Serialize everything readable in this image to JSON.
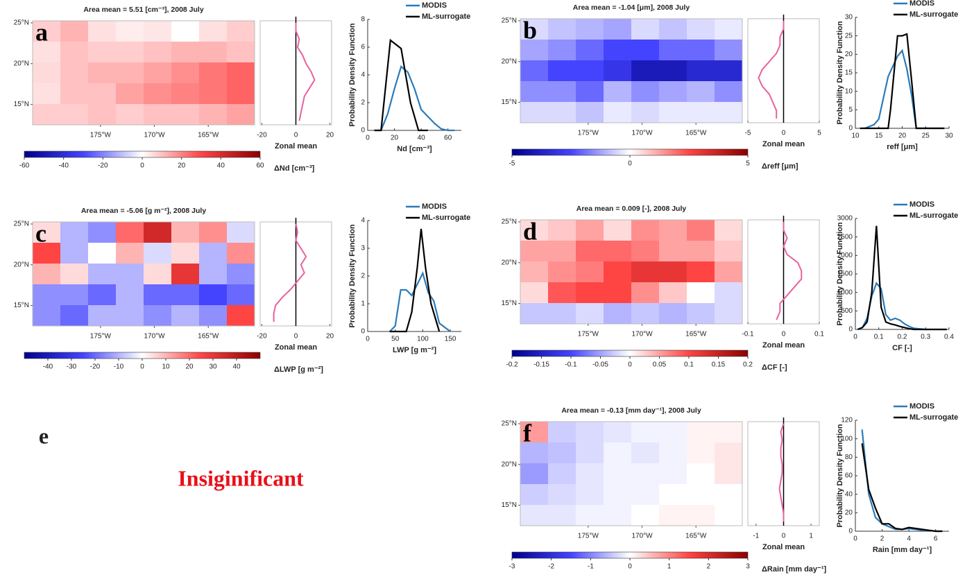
{
  "chart_data": [
    {
      "type": "heatmap",
      "label": "a",
      "title": "Area mean = 5.51  [cm⁻³], 2008 July",
      "xlim": [
        -181.3,
        -160.7
      ],
      "xticks": [
        {
          "value": -175,
          "label": "175°W"
        },
        {
          "value": -170,
          "label": "170°W"
        },
        {
          "value": -165,
          "label": "165°W"
        }
      ],
      "ylim": [
        12.5,
        25.25
      ],
      "yticks": [
        {
          "value": 15,
          "label": "15°N"
        },
        {
          "value": 20,
          "label": "20°N"
        },
        {
          "value": 25,
          "label": "25°N"
        }
      ],
      "field": [
        [
          8,
          12,
          5,
          3,
          4,
          0,
          5,
          8
        ],
        [
          5,
          10,
          8,
          8,
          10,
          12,
          12,
          10
        ],
        [
          6,
          10,
          12,
          12,
          15,
          18,
          22,
          25
        ],
        [
          5,
          10,
          10,
          15,
          18,
          20,
          22,
          25
        ],
        [
          8,
          8,
          10,
          8,
          10,
          10,
          12,
          15
        ]
      ],
      "clim": [
        -60,
        60
      ],
      "cticks": [
        -60,
        -40,
        -20,
        0,
        20,
        40,
        60
      ],
      "colorbar_label": "ΔNd [cm⁻³]",
      "zonal": {
        "type": "line",
        "xlim": [
          -21,
          21
        ],
        "xticks": [
          -20,
          0,
          20
        ],
        "xlabel": "Zonal mean",
        "color": "#e8609f",
        "y": [
          13,
          14,
          15,
          16,
          17,
          18,
          19,
          20,
          21,
          22,
          23,
          24,
          25
        ],
        "values": [
          2,
          3,
          4,
          5,
          8,
          11,
          9,
          6,
          4,
          1,
          2,
          0,
          0
        ]
      },
      "pdf": {
        "type": "line",
        "xlim": [
          0,
          70
        ],
        "xticks": [
          0,
          20,
          40,
          60
        ],
        "ylim": [
          0,
          8
        ],
        "yticks": [
          0,
          2,
          4,
          6,
          8
        ],
        "xlabel": "Nd [cm⁻³]",
        "ylabel": "Probability Density Function",
        "series": [
          {
            "name": "MODIS",
            "color": "#2a7ab9",
            "x": [
              5,
              10,
              15,
              20,
              25,
              30,
              35,
              40,
              45,
              50,
              55,
              60,
              65
            ],
            "values": [
              0,
              0,
              1.2,
              3,
              4.6,
              4.2,
              3,
              1.5,
              1,
              0.5,
              0.1,
              0,
              0
            ]
          },
          {
            "name": "ML-surrogate",
            "color": "#000000",
            "x": [
              5,
              10,
              17,
              25,
              32,
              38,
              45
            ],
            "values": [
              0,
              0,
              6.5,
              5.9,
              2,
              0,
              0
            ]
          }
        ]
      }
    },
    {
      "type": "heatmap",
      "label": "b",
      "title": "Area mean = -1.04  [μm], 2008 July",
      "xlim": [
        -181.3,
        -160.7
      ],
      "xticks": [
        {
          "value": -175,
          "label": "175°W"
        },
        {
          "value": -170,
          "label": "170°W"
        },
        {
          "value": -165,
          "label": "165°W"
        }
      ],
      "ylim": [
        12.5,
        25.25
      ],
      "yticks": [
        {
          "value": 15,
          "label": "15°N"
        },
        {
          "value": 20,
          "label": "20°N"
        },
        {
          "value": 25,
          "label": "25°N"
        }
      ],
      "field": [
        [
          -0.5,
          -0.8,
          -1,
          -1.2,
          -0.5,
          -0.8,
          -0.5,
          -0.3
        ],
        [
          -1.2,
          -1.5,
          -2,
          -2.5,
          -2.5,
          -2,
          -2,
          -1.5
        ],
        [
          -2,
          -2.5,
          -2.5,
          -3,
          -4,
          -4,
          -3.5,
          -3.5
        ],
        [
          -1.5,
          -1.5,
          -2,
          -1,
          -1.5,
          -1.2,
          -1,
          -1.5
        ],
        [
          -0.5,
          -0.5,
          -0.8,
          -0.3,
          -0.5,
          -0.3,
          -0.3,
          -0.3
        ]
      ],
      "clim": [
        -5,
        5
      ],
      "cticks": [
        -5,
        0,
        5
      ],
      "colorbar_label": "Δreff [μm]",
      "zonal": {
        "type": "line",
        "xlim": [
          -5,
          5
        ],
        "xticks": [
          -5,
          0,
          5
        ],
        "xlabel": "Zonal mean",
        "color": "#e8609f",
        "y": [
          13,
          14,
          15,
          16,
          17,
          18,
          19,
          20,
          21,
          22,
          23,
          24,
          25
        ],
        "values": [
          -1,
          -1,
          -1.5,
          -2,
          -3,
          -3.5,
          -3,
          -2,
          -1,
          -0.5,
          -0.5,
          0,
          0
        ]
      },
      "pdf": {
        "type": "line",
        "xlim": [
          10,
          30
        ],
        "xticks": [
          10,
          15,
          20,
          25,
          30
        ],
        "ylim": [
          0,
          30
        ],
        "yticks": [
          0,
          5,
          10,
          15,
          20,
          25,
          30
        ],
        "xlabel": "reff [μm]",
        "ylabel": "Probability Density Function",
        "series": [
          {
            "name": "MODIS",
            "color": "#2a7ab9",
            "x": [
              12,
              14,
              15,
              17,
              19,
              20,
              21,
              22,
              23,
              25,
              27,
              29
            ],
            "values": [
              0,
              1,
              2.5,
              14,
              19.5,
              21,
              16,
              9,
              0,
              0,
              0,
              0
            ]
          },
          {
            "name": "ML-surrogate",
            "color": "#000000",
            "x": [
              11,
              17,
              17.5,
              19,
              20,
              21,
              22,
              23,
              29
            ],
            "values": [
              0,
              0,
              5,
              25,
              25,
              25.5,
              13,
              0,
              0
            ]
          }
        ]
      }
    },
    {
      "type": "heatmap",
      "label": "c",
      "title": "Area mean = -5.06  [g m⁻²], 2008 July",
      "xlim": [
        -181.3,
        -160.7
      ],
      "xticks": [
        {
          "value": -175,
          "label": "175°W"
        },
        {
          "value": -170,
          "label": "170°W"
        },
        {
          "value": -165,
          "label": "165°W"
        }
      ],
      "ylim": [
        12.5,
        25.25
      ],
      "yticks": [
        {
          "value": 15,
          "label": "15°N"
        },
        {
          "value": 20,
          "label": "20°N"
        },
        {
          "value": 25,
          "label": "25°N"
        }
      ],
      "field": [
        [
          5,
          -10,
          -15,
          20,
          35,
          10,
          15,
          -5
        ],
        [
          25,
          -10,
          0,
          10,
          -5,
          5,
          -10,
          15
        ],
        [
          10,
          5,
          -10,
          -10,
          5,
          30,
          -10,
          -15
        ],
        [
          -15,
          -15,
          -20,
          -10,
          -20,
          -20,
          -25,
          -20
        ],
        [
          -15,
          -20,
          -10,
          -10,
          -15,
          -10,
          -15,
          25
        ]
      ],
      "clim": [
        -50,
        50
      ],
      "cticks": [
        -40,
        -30,
        -20,
        -10,
        0,
        10,
        20,
        30,
        40
      ],
      "colorbar_label": "ΔLWP [g m⁻²]",
      "zonal": {
        "type": "line",
        "xlim": [
          -21,
          21
        ],
        "xticks": [
          -20,
          0,
          20
        ],
        "xlabel": "Zonal mean",
        "color": "#e8609f",
        "y": [
          13,
          14,
          15,
          16,
          17,
          18,
          19,
          20,
          21,
          22,
          23,
          24,
          25
        ],
        "values": [
          -13,
          -13,
          -12,
          -8,
          -3,
          1,
          5,
          3,
          6,
          3,
          0,
          1,
          0
        ]
      },
      "pdf": {
        "type": "line",
        "xlim": [
          0,
          170
        ],
        "xticks": [
          0,
          50,
          100,
          150
        ],
        "ylim": [
          0,
          4
        ],
        "yticks": [
          0,
          1,
          2,
          3,
          4
        ],
        "xlabel": "LWP [g m⁻²]",
        "ylabel": "Probability Density Function",
        "series": [
          {
            "name": "MODIS",
            "color": "#2a7ab9",
            "x": [
              40,
              50,
              60,
              70,
              80,
              90,
              100,
              110,
              120,
              130,
              150
            ],
            "values": [
              0,
              0.2,
              1.5,
              1.5,
              1.3,
              1.7,
              2.1,
              1.4,
              1.1,
              0.3,
              0
            ]
          },
          {
            "name": "ML-surrogate",
            "color": "#000000",
            "x": [
              40,
              70,
              80,
              90,
              97,
              105,
              115,
              130
            ],
            "values": [
              0,
              0,
              0.7,
              2.3,
              3.7,
              2.3,
              1,
              0
            ]
          }
        ]
      }
    },
    {
      "type": "heatmap",
      "label": "d",
      "title": "Area mean = 0.009  [-], 2008 July",
      "xlim": [
        -181.3,
        -160.7
      ],
      "xticks": [
        {
          "value": -175,
          "label": "175°W"
        },
        {
          "value": -170,
          "label": "170°W"
        },
        {
          "value": -165,
          "label": "165°W"
        }
      ],
      "ylim": [
        12.5,
        25.25
      ],
      "yticks": [
        {
          "value": 15,
          "label": "15°N"
        },
        {
          "value": 20,
          "label": "20°N"
        },
        {
          "value": 25,
          "label": "25°N"
        }
      ],
      "field": [
        [
          0.02,
          0.03,
          0.05,
          0.02,
          0.06,
          0.05,
          0.07,
          0.02
        ],
        [
          0.05,
          0.05,
          0.08,
          0.08,
          0.07,
          0.05,
          0.05,
          0.03
        ],
        [
          0.04,
          0.06,
          0.07,
          0.1,
          0.12,
          0.12,
          0.1,
          0.05
        ],
        [
          0.02,
          0.09,
          0.1,
          0.1,
          0.06,
          0.03,
          0,
          -0.02
        ],
        [
          -0.03,
          -0.03,
          -0.02,
          -0.04,
          -0.03,
          -0.04,
          -0.03,
          -0.02
        ]
      ],
      "clim": [
        -0.2,
        0.2
      ],
      "cticks": [
        -0.2,
        -0.15,
        -0.1,
        -0.05,
        0,
        0.05,
        0.1,
        0.15,
        0.2
      ],
      "colorbar_label": "ΔCF [-]",
      "zonal": {
        "type": "line",
        "xlim": [
          -0.1,
          0.1
        ],
        "xticks": [
          -0.1,
          0,
          0.1
        ],
        "xlabel": "Zonal mean",
        "color": "#e8609f",
        "y": [
          13,
          14,
          15,
          16,
          17,
          18,
          19,
          20,
          21,
          22,
          23,
          24,
          25
        ],
        "values": [
          -0.02,
          -0.01,
          -0.01,
          0.01,
          0.03,
          0.05,
          0.05,
          0.04,
          0.01,
          0,
          0.01,
          0,
          0
        ]
      },
      "pdf": {
        "type": "line",
        "xlim": [
          0,
          0.4
        ],
        "xticks": [
          0,
          0.1,
          0.2,
          0.3,
          0.4
        ],
        "ylim": [
          0,
          3000
        ],
        "yticks": [
          0,
          500,
          1000,
          1500,
          2000,
          2500,
          3000
        ],
        "xlabel": "CF [-]",
        "ylabel": "Probability Density Function",
        "series": [
          {
            "name": "MODIS",
            "color": "#2a7ab9",
            "x": [
              0.01,
              0.03,
              0.05,
              0.07,
              0.09,
              0.11,
              0.13,
              0.15,
              0.17,
              0.19,
              0.21,
              0.23,
              0.25,
              0.3,
              0.39
            ],
            "values": [
              0,
              50,
              300,
              900,
              1250,
              1100,
              400,
              250,
              300,
              250,
              150,
              80,
              30,
              0,
              0
            ]
          },
          {
            "name": "ML-surrogate",
            "color": "#000000",
            "x": [
              0.01,
              0.03,
              0.05,
              0.07,
              0.09,
              0.11,
              0.13,
              0.15,
              0.17,
              0.19,
              0.21,
              0.23,
              0.25,
              0.3,
              0.39
            ],
            "values": [
              0,
              50,
              200,
              1000,
              2800,
              600,
              200,
              150,
              120,
              80,
              50,
              20,
              0,
              0,
              0
            ]
          }
        ]
      }
    },
    {
      "type": "heatmap",
      "label": "f",
      "title": "Area mean = -0.13  [mm day⁻¹], 2008 July",
      "xlim": [
        -181.3,
        -160.7
      ],
      "xticks": [
        {
          "value": -175,
          "label": "175°W"
        },
        {
          "value": -170,
          "label": "170°W"
        },
        {
          "value": -165,
          "label": "165°W"
        }
      ],
      "ylim": [
        12.5,
        25.25
      ],
      "yticks": [
        {
          "value": 15,
          "label": "15°N"
        },
        {
          "value": 20,
          "label": "20°N"
        },
        {
          "value": 25,
          "label": "25°N"
        }
      ],
      "field": [
        [
          0.8,
          -0.4,
          -0.3,
          -0.2,
          -0.1,
          -0.1,
          0.1,
          0.1
        ],
        [
          -0.6,
          -0.5,
          -0.3,
          -0.1,
          -0.2,
          -0.1,
          0.1,
          0.2
        ],
        [
          -0.8,
          -0.4,
          -0.2,
          -0.1,
          -0.1,
          -0.1,
          0,
          0.2
        ],
        [
          -0.4,
          -0.3,
          -0.2,
          -0.1,
          -0.1,
          0,
          0,
          0
        ],
        [
          -0.2,
          -0.2,
          -0.1,
          -0.1,
          0,
          0.1,
          0.1,
          0
        ]
      ],
      "clim": [
        -3,
        3
      ],
      "cticks": [
        -3,
        -2,
        -1,
        0,
        1,
        2,
        3
      ],
      "colorbar_label": "ΔRain [mm day⁻¹]",
      "zonal": {
        "type": "line",
        "xlim": [
          -1.3,
          1.3
        ],
        "xticks": [
          -1,
          0,
          1
        ],
        "xlabel": "Zonal mean",
        "color": "#e8609f",
        "y": [
          13,
          14,
          15,
          16,
          17,
          18,
          19,
          20,
          21,
          22,
          23,
          24,
          25
        ],
        "values": [
          0,
          0,
          -0.05,
          -0.1,
          -0.15,
          -0.1,
          -0.05,
          -0.05,
          -0.1,
          -0.1,
          -0.05,
          -0.1,
          0
        ]
      },
      "pdf": {
        "type": "line",
        "xlim": [
          0,
          7
        ],
        "xticks": [
          0,
          2,
          4,
          6
        ],
        "ylim": [
          0,
          120
        ],
        "yticks": [
          0,
          20,
          40,
          60,
          80,
          100,
          120
        ],
        "xlabel": "Rain [mm day⁻¹]",
        "ylabel": "Probability Density Function",
        "series": [
          {
            "name": "MODIS",
            "color": "#2a7ab9",
            "x": [
              0.5,
              1,
              1.5,
              2,
              2.5,
              3,
              3.5,
              4,
              4.5,
              5,
              5.5,
              6,
              6.5
            ],
            "values": [
              110,
              40,
              15,
              8,
              5,
              2,
              2,
              3,
              2,
              1,
              1,
              0,
              0
            ]
          },
          {
            "name": "ML-surrogate",
            "color": "#000000",
            "x": [
              0.5,
              1,
              1.5,
              2,
              2.5,
              3,
              3.5,
              4,
              4.5,
              5,
              5.5,
              6,
              6.5
            ],
            "values": [
              95,
              45,
              25,
              8,
              8,
              3,
              2,
              4,
              3,
              2,
              1,
              0,
              0
            ]
          }
        ]
      }
    }
  ],
  "annotations": {
    "label": "e",
    "text": "Insiginificant"
  }
}
